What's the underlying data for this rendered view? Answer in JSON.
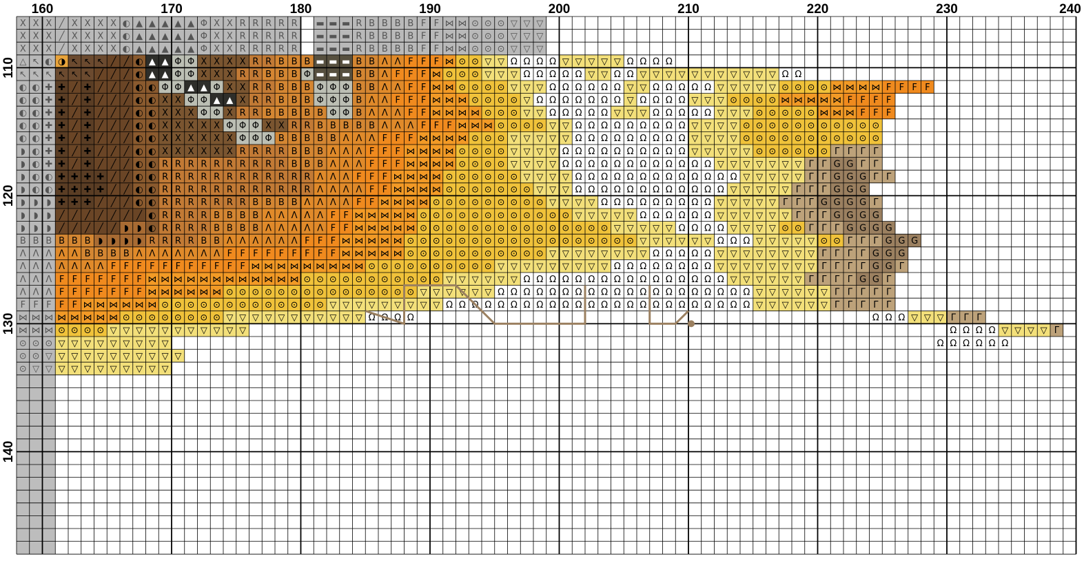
{
  "pattern": {
    "column_labels": [
      "160",
      "170",
      "180",
      "190",
      "200",
      "210",
      "220",
      "230",
      "240"
    ],
    "column_values": [
      160,
      170,
      180,
      190,
      200,
      210,
      220,
      230,
      240
    ],
    "row_labels": [
      "110",
      "120",
      "130",
      "140"
    ],
    "row_values": [
      110,
      120,
      130,
      140
    ],
    "first_column": 158,
    "first_row": 106,
    "columns": 83,
    "rows": 42,
    "symbols": {
      "a": {
        "glyph": "△",
        "color": "#f5e98a",
        "ink": "#000000",
        "name": "fabric-cream"
      },
      "b": {
        "glyph": "◑",
        "color": "#e8a33a",
        "ink": "#000000",
        "name": "light-orange"
      },
      "c": {
        "glyph": "↖",
        "color": "#6b4a2f",
        "ink": "#000000",
        "name": "dark-brown"
      },
      "d": {
        "glyph": "◐",
        "color": "#8a5a2e",
        "ink": "#000000",
        "name": "medium-brown"
      },
      "e": {
        "glyph": "Φ",
        "color": "#bcbfb4",
        "ink": "#000000",
        "name": "light-gray-green"
      },
      "f": {
        "glyph": "▲",
        "color": "#2e2e2a",
        "ink": "#ffffff",
        "name": "charcoal"
      },
      "g": {
        "glyph": "X",
        "color": "#7a5530",
        "ink": "#000000",
        "name": "chestnut"
      },
      "h": {
        "glyph": "R",
        "color": "#c27a35",
        "ink": "#000000",
        "name": "tan-orange"
      },
      "i": {
        "glyph": "B",
        "color": "#d48632",
        "ink": "#000000",
        "name": "amber"
      },
      "j": {
        "glyph": "▬",
        "color": "#57503f",
        "ink": "#ffffff",
        "name": "dark-olive"
      },
      "k": {
        "glyph": "Λ",
        "color": "#e08a2a",
        "ink": "#000000",
        "name": "deep-orange"
      },
      "l": {
        "glyph": "F",
        "color": "#f08a1e",
        "ink": "#000000",
        "name": "bright-orange"
      },
      "m": {
        "glyph": "⋈",
        "color": "#f29a26",
        "ink": "#000000",
        "name": "orange-gold"
      },
      "n": {
        "glyph": "⊙",
        "color": "#f0c23a",
        "ink": "#000000",
        "name": "gold"
      },
      "o": {
        "glyph": "▽",
        "color": "#f3e07a",
        "ink": "#000000",
        "name": "pale-yellow"
      },
      "p": {
        "glyph": "Ω",
        "color": "#ffffff",
        "ink": "#000000",
        "name": "white"
      },
      "q": {
        "glyph": "✚",
        "color": "#5a3d24",
        "ink": "#000000",
        "name": "espresso"
      },
      "r": {
        "glyph": "◗",
        "color": "#a86b33",
        "ink": "#000000",
        "name": "cinnamon"
      },
      "s": {
        "glyph": "Γ",
        "color": "#bda27a",
        "ink": "#000000",
        "name": "khaki"
      },
      "t": {
        "glyph": "G",
        "color": "#9b8060",
        "ink": "#000000",
        "name": "taupe"
      },
      "u": {
        "glyph": "╱",
        "color": "#6a4526",
        "ink": "#000000",
        "name": "walnut"
      }
    },
    "grid": [
      "ggguggggdfffffeggRRRRR.jjjRBBBBlFmmnnnooo",
      "ggguggggdfffffeggRRRRR.jjjRBBBBlFmmnnnooo",
      "ggguggggdfffffeggRRRRR.jjjRBBBBlFmmnnnooo",
      "acdbcccuudffeeggggRRiiijjjBBkklllmnnooppppooooopppp",
      "ccccccuuudffeegggRRiiiejjjBBklllmnnnooopppppooppooooooooooopp",
      "ddqququuuddeeffeggRRiiieeeBBkkllmmnnnnoooppppppoopppppooooonnnnmmmmllll",
      "ddqququuuddggeeffgRRiiieeeBkklllmmmnnnnopppppppoppppooonnnnmmmmmllll",
      "ddqququuuddgggeegRRiiiBBeeBkkkllmmmmnnnoopppppooopppppooonnnnnmmmlll",
      "ddqququuuddgggggeeeggRRiiBBBkkklllmmmnnnnoopppppppppoooonnnnnnnnnnn",
      "ddqququuuddggggggeeeBBBBBkkklllmmmmnnnooooopppppppppoooonnnnnnnnnnn",
      "rdqququuuddggggggRRRRBBBkkklllmmmmnnnnooooppppppppppooooonnnnnnssss",
      "rdqququuuddRRRRRRRRRRBBBkkklllmmmmnnnnooooppppppppppppooooooossttss",
      "rddqqqquuddRRRRRRRRRRRRkkklllmmmmnnnnnnoooopppppppppppppooooosstttss",
      "rddqqqquuddRRRRRRRRRRRRkkkkllmmmmnnnnnnnoooppppppppppppooooosssttt",
      "rrrqqquuuddRRRRRRRiiiikkkkllmmmmnnnnnnnnnoooopppppppppooooossstttts",
      "rrruuuuuuudRRRRiiiikkkkkllmmmmmnnnnnnnnnnnnoooooppppppoooooossstttt",
      "rrruuuuurrdRRRRiiiikkkkkllmmmmmnnnnnnnnnnnnnnnoooooppppoooonnssstttt",
      "iiiiiirrrrRRRRiikkkkkklllmmmmmnnnnnnnnnnnnnnnnnnoooooopppooooonnsssttt",
      "kkkkkiiiikkkkkkklllllllllmmmmmnnnnnnnnnnnoooooooopppppoooooooossssttt",
      "kkkkkkklllllllllllmmmmmmmmmnnnnnnnnnnoooooooooppppppppoooooooosssstts",
      "kkklllllllmmmmmmmmmmmmnnnnnnnnnnnooooooppppppppppppppppoooooosssstts",
      "kkklllllllmmmmmmnnnnnnnnnnnnnnnooooooppppppppppppppppppppoooooosssss",
      "lllllmmmmmmnnnnnnnnnnnnnoooooooooppppppppppppppppppppppppoooooosssss",
      "mmmmmmmmnnnnnnnnooooooooooopppp...................................pppooosss",
      "mmmnnnnooooooooooo......................................................ppppoooos",
      "nnnooooooooo...........................................................pppppp",
      "nnooooooooooo",
      "nooooooooooo"
    ],
    "highlight": {
      "path_columns": [
        185,
        188,
        192,
        195,
        198,
        202,
        207,
        210
      ],
      "path_rows": [
        127,
        130
      ]
    }
  }
}
